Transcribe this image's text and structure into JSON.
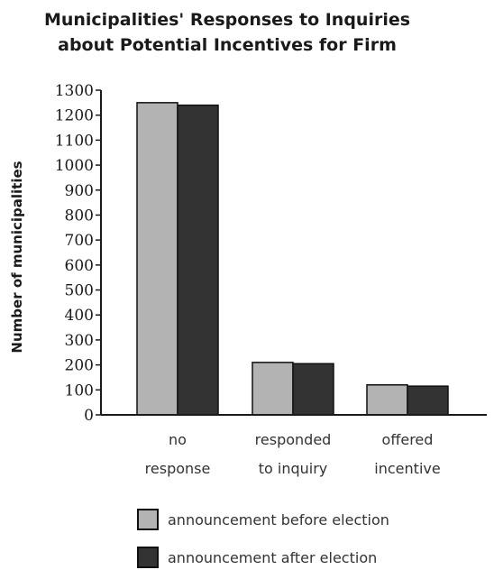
{
  "chart_data": {
    "type": "bar",
    "title_lines": [
      "Municipalities' Responses to Inquiries",
      "about Potential Incentives for Firm"
    ],
    "ylabel": "Number of municipalities",
    "xlabel": "",
    "ylim": [
      0,
      1300
    ],
    "yticks": [
      0,
      100,
      200,
      300,
      400,
      500,
      600,
      700,
      800,
      900,
      1000,
      1100,
      1200,
      1300
    ],
    "categories": [
      [
        "no",
        "response"
      ],
      [
        "responded",
        "to inquiry"
      ],
      [
        "offered",
        "incentive"
      ]
    ],
    "series": [
      {
        "name": "announcement before election",
        "values": [
          1250,
          210,
          120
        ],
        "color": "#b3b3b3"
      },
      {
        "name": "announcement after election",
        "values": [
          1240,
          205,
          115
        ],
        "color": "#333333"
      }
    ],
    "legend_position": "bottom"
  }
}
